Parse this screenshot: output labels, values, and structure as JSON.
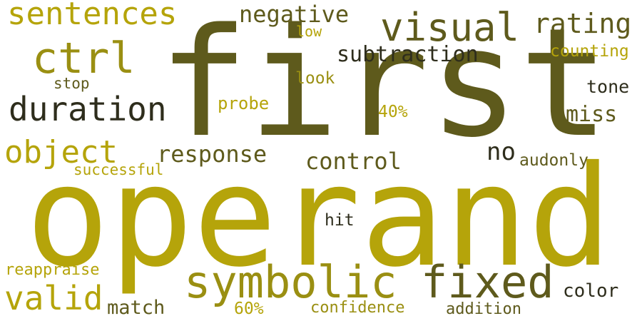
{
  "colors": {
    "background": "#ffffff",
    "olive_dark": "#5e5a1c",
    "olive_mid": "#9a8f12",
    "gold": "#b5a40a",
    "dark": "#2e2d1c"
  },
  "words": [
    {
      "text": "first",
      "color": "#5e5a1c"
    },
    {
      "text": "operand",
      "color": "#b5a40a"
    },
    {
      "text": "symbolic",
      "color": "#9a8f12"
    },
    {
      "text": "fixed",
      "color": "#5e5a1c"
    },
    {
      "text": "sentences",
      "color": "#b5a40a"
    },
    {
      "text": "ctrl",
      "color": "#9a8f12"
    },
    {
      "text": "duration",
      "color": "#2e2d1c"
    },
    {
      "text": "visual",
      "color": "#5e5a1c"
    },
    {
      "text": "object",
      "color": "#b5a40a"
    },
    {
      "text": "valid",
      "color": "#b5a40a"
    },
    {
      "text": "negative",
      "color": "#5e5a1c"
    },
    {
      "text": "rating",
      "color": "#5e5a1c"
    },
    {
      "text": "subtraction",
      "color": "#2e2d1c"
    },
    {
      "text": "response",
      "color": "#5e5a1c"
    },
    {
      "text": "control",
      "color": "#5e5a1c"
    },
    {
      "text": "no",
      "color": "#2e2d1c"
    },
    {
      "text": "miss",
      "color": "#5e5a1c"
    },
    {
      "text": "counting",
      "color": "#b5a40a"
    },
    {
      "text": "tone",
      "color": "#2e2d1c"
    },
    {
      "text": "low",
      "color": "#b5a40a"
    },
    {
      "text": "look",
      "color": "#9a8f12"
    },
    {
      "text": "stop",
      "color": "#5e5a1c"
    },
    {
      "text": "probe",
      "color": "#b5a40a"
    },
    {
      "text": "40%",
      "color": "#b5a40a"
    },
    {
      "text": "successful",
      "color": "#b5a40a"
    },
    {
      "text": "audonly",
      "color": "#5e5a1c"
    },
    {
      "text": "hit",
      "color": "#2e2d1c"
    },
    {
      "text": "reappraise",
      "color": "#b5a40a"
    },
    {
      "text": "match",
      "color": "#5e5a1c"
    },
    {
      "text": "60%",
      "color": "#b5a40a"
    },
    {
      "text": "confidence",
      "color": "#9a8f12"
    },
    {
      "text": "addition",
      "color": "#5e5a1c"
    },
    {
      "text": "color",
      "color": "#2e2d1c"
    }
  ]
}
